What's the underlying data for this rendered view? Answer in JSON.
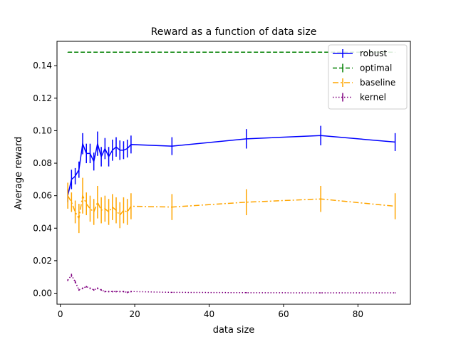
{
  "chart_data": {
    "type": "line",
    "title": "Reward as a function of data size",
    "xlabel": "data size",
    "ylabel": "Average reward",
    "xlim": [
      -0.9,
      94.1
    ],
    "ylim": [
      -0.0068,
      0.155
    ],
    "xticks": [
      0,
      20,
      40,
      60,
      80
    ],
    "xtick_labels": [
      "0",
      "20",
      "40",
      "60",
      "80"
    ],
    "yticks": [
      0.0,
      0.02,
      0.04,
      0.06,
      0.08,
      0.1,
      0.12,
      0.14
    ],
    "ytick_labels": [
      "0.00",
      "0.02",
      "0.04",
      "0.06",
      "0.08",
      "0.10",
      "0.12",
      "0.14"
    ],
    "grid": false,
    "legend_position": "top-right",
    "series": [
      {
        "name": "robust",
        "color": "#0000ff",
        "linestyle": "solid",
        "x": [
          2,
          3,
          4,
          5,
          6,
          7,
          8,
          9,
          10,
          11,
          12,
          13,
          14,
          15,
          16,
          17,
          18,
          19,
          30,
          50,
          70,
          90
        ],
        "y": [
          0.06,
          0.07,
          0.072,
          0.076,
          0.092,
          0.086,
          0.086,
          0.081,
          0.092,
          0.084,
          0.089,
          0.084,
          0.088,
          0.09,
          0.088,
          0.088,
          0.089,
          0.0915,
          0.0905,
          0.095,
          0.097,
          0.093
        ],
        "yerr": [
          0.004,
          0.006,
          0.005,
          0.005,
          0.0065,
          0.006,
          0.006,
          0.0055,
          0.0075,
          0.006,
          0.0065,
          0.006,
          0.0065,
          0.006,
          0.006,
          0.0055,
          0.0055,
          0.0055,
          0.0055,
          0.006,
          0.006,
          0.0055
        ]
      },
      {
        "name": "optimal",
        "color": "#008000",
        "linestyle": "dashed",
        "x": [
          2,
          90
        ],
        "y": [
          0.1483,
          0.1483
        ],
        "yerr": [
          0.0001,
          0.0001
        ]
      },
      {
        "name": "baseline",
        "color": "#ffa500",
        "linestyle": "dashdot",
        "x": [
          2,
          3,
          4,
          5,
          6,
          7,
          8,
          9,
          10,
          11,
          12,
          13,
          14,
          15,
          16,
          17,
          18,
          19,
          30,
          50,
          70,
          90
        ],
        "y": [
          0.06,
          0.056,
          0.05,
          0.046,
          0.06,
          0.055,
          0.052,
          0.05,
          0.056,
          0.051,
          0.052,
          0.05,
          0.053,
          0.051,
          0.048,
          0.051,
          0.05,
          0.0535,
          0.053,
          0.056,
          0.058,
          0.0535
        ],
        "yerr": [
          0.008,
          0.006,
          0.007,
          0.009,
          0.011,
          0.007,
          0.008,
          0.008,
          0.01,
          0.008,
          0.008,
          0.008,
          0.008,
          0.008,
          0.008,
          0.008,
          0.008,
          0.008,
          0.008,
          0.008,
          0.008,
          0.008
        ]
      },
      {
        "name": "kernel",
        "color": "#800080",
        "linestyle": "dotted",
        "x": [
          2,
          3,
          4,
          5,
          6,
          7,
          8,
          9,
          10,
          11,
          12,
          13,
          14,
          15,
          16,
          17,
          18,
          19,
          30,
          50,
          70,
          90
        ],
        "y": [
          0.008,
          0.011,
          0.007,
          0.002,
          0.003,
          0.004,
          0.003,
          0.002,
          0.003,
          0.002,
          0.001,
          0.001,
          0.001,
          0.001,
          0.001,
          0.001,
          0.0005,
          0.001,
          0.0005,
          0.0003,
          0.0002,
          0.0002
        ],
        "yerr": [
          0.0005,
          0.001,
          0.0008,
          0.0005,
          0.0005,
          0.0005,
          0.0005,
          0.0005,
          0.0005,
          0.0005,
          0.0005,
          0.0005,
          0.0005,
          0.0005,
          0.0005,
          0.0005,
          0.0005,
          0.0005,
          0.0003,
          0.0003,
          0.0003,
          0.0003
        ]
      }
    ]
  }
}
